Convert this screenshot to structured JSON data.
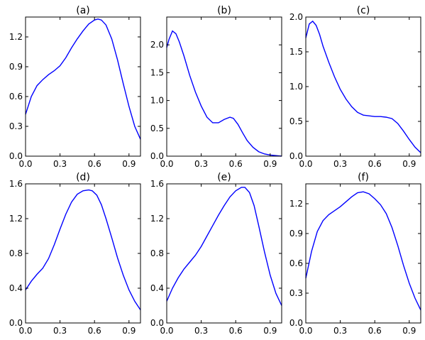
{
  "chart_data": [
    {
      "type": "line",
      "title": "(a)",
      "xlim": [
        0,
        1
      ],
      "ylim": [
        0,
        1.4
      ],
      "xticks": [
        "0.0",
        "0.3",
        "0.6",
        "0.9"
      ],
      "xtick_values": [
        0,
        0.3,
        0.6,
        0.9
      ],
      "yticks": [
        "0.0",
        "0.3",
        "0.6",
        "0.9",
        "1.2"
      ],
      "ytick_values": [
        0,
        0.3,
        0.6,
        0.9,
        1.2
      ],
      "series": [
        {
          "color": "#0000ff",
          "x": [
            0,
            0.05,
            0.1,
            0.15,
            0.2,
            0.25,
            0.3,
            0.35,
            0.4,
            0.45,
            0.5,
            0.55,
            0.6,
            0.63,
            0.66,
            0.7,
            0.75,
            0.8,
            0.85,
            0.9,
            0.95,
            1.0
          ],
          "y": [
            0.42,
            0.6,
            0.71,
            0.77,
            0.82,
            0.86,
            0.91,
            0.99,
            1.09,
            1.18,
            1.26,
            1.33,
            1.37,
            1.38,
            1.37,
            1.32,
            1.18,
            0.97,
            0.73,
            0.5,
            0.3,
            0.17
          ]
        }
      ]
    },
    {
      "type": "line",
      "title": "(b)",
      "xlim": [
        0,
        1
      ],
      "ylim": [
        0,
        2.5
      ],
      "xticks": [
        "0.0",
        "0.3",
        "0.6",
        "0.9"
      ],
      "xtick_values": [
        0,
        0.3,
        0.6,
        0.9
      ],
      "yticks": [
        "0.0",
        "0.5",
        "1.0",
        "1.5",
        "2.0"
      ],
      "ytick_values": [
        0,
        0.5,
        1.0,
        1.5,
        2.0
      ],
      "series": [
        {
          "color": "#0000ff",
          "x": [
            0,
            0.02,
            0.05,
            0.08,
            0.11,
            0.15,
            0.2,
            0.25,
            0.3,
            0.35,
            0.4,
            0.45,
            0.5,
            0.55,
            0.58,
            0.62,
            0.66,
            0.7,
            0.75,
            0.8,
            0.85,
            0.9,
            0.95,
            1.0
          ],
          "y": [
            1.95,
            2.1,
            2.25,
            2.2,
            2.05,
            1.8,
            1.45,
            1.15,
            0.9,
            0.7,
            0.6,
            0.6,
            0.66,
            0.7,
            0.68,
            0.57,
            0.42,
            0.28,
            0.16,
            0.08,
            0.04,
            0.02,
            0.01,
            0.0
          ]
        }
      ]
    },
    {
      "type": "line",
      "title": "(c)",
      "xlim": [
        0,
        1
      ],
      "ylim": [
        0,
        2.0
      ],
      "xticks": [
        "0.0",
        "0.3",
        "0.6",
        "0.9"
      ],
      "xtick_values": [
        0,
        0.3,
        0.6,
        0.9
      ],
      "yticks": [
        "0.0",
        "0.5",
        "1.0",
        "1.5",
        "2.0"
      ],
      "ytick_values": [
        0,
        0.5,
        1.0,
        1.5,
        2.0
      ],
      "series": [
        {
          "color": "#0000ff",
          "x": [
            0,
            0.03,
            0.06,
            0.09,
            0.12,
            0.15,
            0.2,
            0.25,
            0.3,
            0.35,
            0.4,
            0.45,
            0.5,
            0.55,
            0.6,
            0.65,
            0.7,
            0.75,
            0.8,
            0.85,
            0.9,
            0.95,
            1.0
          ],
          "y": [
            1.7,
            1.9,
            1.94,
            1.88,
            1.75,
            1.58,
            1.35,
            1.14,
            0.96,
            0.82,
            0.71,
            0.63,
            0.59,
            0.58,
            0.57,
            0.57,
            0.56,
            0.54,
            0.47,
            0.36,
            0.24,
            0.13,
            0.05
          ]
        }
      ]
    },
    {
      "type": "line",
      "title": "(d)",
      "xlim": [
        0,
        1
      ],
      "ylim": [
        0,
        1.6
      ],
      "xticks": [
        "0.0",
        "0.3",
        "0.6",
        "0.9"
      ],
      "xtick_values": [
        0,
        0.3,
        0.6,
        0.9
      ],
      "yticks": [
        "0.0",
        "0.4",
        "0.8",
        "1.2",
        "1.6"
      ],
      "ytick_values": [
        0,
        0.4,
        0.8,
        1.2,
        1.6
      ],
      "series": [
        {
          "color": "#0000ff",
          "x": [
            0,
            0.05,
            0.1,
            0.15,
            0.2,
            0.25,
            0.3,
            0.35,
            0.4,
            0.45,
            0.5,
            0.55,
            0.58,
            0.62,
            0.66,
            0.7,
            0.75,
            0.8,
            0.85,
            0.9,
            0.95,
            1.0
          ],
          "y": [
            0.38,
            0.48,
            0.56,
            0.63,
            0.74,
            0.9,
            1.08,
            1.25,
            1.39,
            1.48,
            1.52,
            1.53,
            1.52,
            1.47,
            1.36,
            1.2,
            0.98,
            0.75,
            0.55,
            0.38,
            0.25,
            0.15
          ]
        }
      ]
    },
    {
      "type": "line",
      "title": "(e)",
      "xlim": [
        0,
        1
      ],
      "ylim": [
        0,
        1.6
      ],
      "xticks": [
        "0.0",
        "0.3",
        "0.6",
        "0.9"
      ],
      "xtick_values": [
        0,
        0.3,
        0.6,
        0.9
      ],
      "yticks": [
        "0.0",
        "0.4",
        "0.8",
        "1.2",
        "1.6"
      ],
      "ytick_values": [
        0,
        0.4,
        0.8,
        1.2,
        1.6
      ],
      "series": [
        {
          "color": "#0000ff",
          "x": [
            0,
            0.05,
            0.1,
            0.15,
            0.2,
            0.25,
            0.3,
            0.35,
            0.4,
            0.45,
            0.5,
            0.55,
            0.6,
            0.65,
            0.68,
            0.72,
            0.76,
            0.8,
            0.85,
            0.9,
            0.95,
            1.0
          ],
          "y": [
            0.25,
            0.4,
            0.52,
            0.62,
            0.7,
            0.78,
            0.88,
            1.0,
            1.12,
            1.24,
            1.35,
            1.45,
            1.52,
            1.56,
            1.56,
            1.5,
            1.35,
            1.12,
            0.82,
            0.55,
            0.34,
            0.2
          ]
        }
      ]
    },
    {
      "type": "line",
      "title": "(f)",
      "xlim": [
        0,
        1
      ],
      "ylim": [
        0,
        1.4
      ],
      "xticks": [
        "0.0",
        "0.3",
        "0.6",
        "0.9"
      ],
      "xtick_values": [
        0,
        0.3,
        0.6,
        0.9
      ],
      "yticks": [
        "0.0",
        "0.3",
        "0.6",
        "0.9",
        "1.2"
      ],
      "ytick_values": [
        0,
        0.3,
        0.6,
        0.9,
        1.2
      ],
      "series": [
        {
          "color": "#0000ff",
          "x": [
            0,
            0.05,
            0.1,
            0.15,
            0.2,
            0.25,
            0.3,
            0.35,
            0.4,
            0.45,
            0.5,
            0.55,
            0.6,
            0.65,
            0.7,
            0.75,
            0.8,
            0.85,
            0.9,
            0.95,
            1.0
          ],
          "y": [
            0.45,
            0.72,
            0.92,
            1.03,
            1.09,
            1.13,
            1.17,
            1.22,
            1.27,
            1.31,
            1.32,
            1.3,
            1.25,
            1.19,
            1.1,
            0.96,
            0.78,
            0.58,
            0.4,
            0.25,
            0.13
          ]
        }
      ]
    }
  ]
}
